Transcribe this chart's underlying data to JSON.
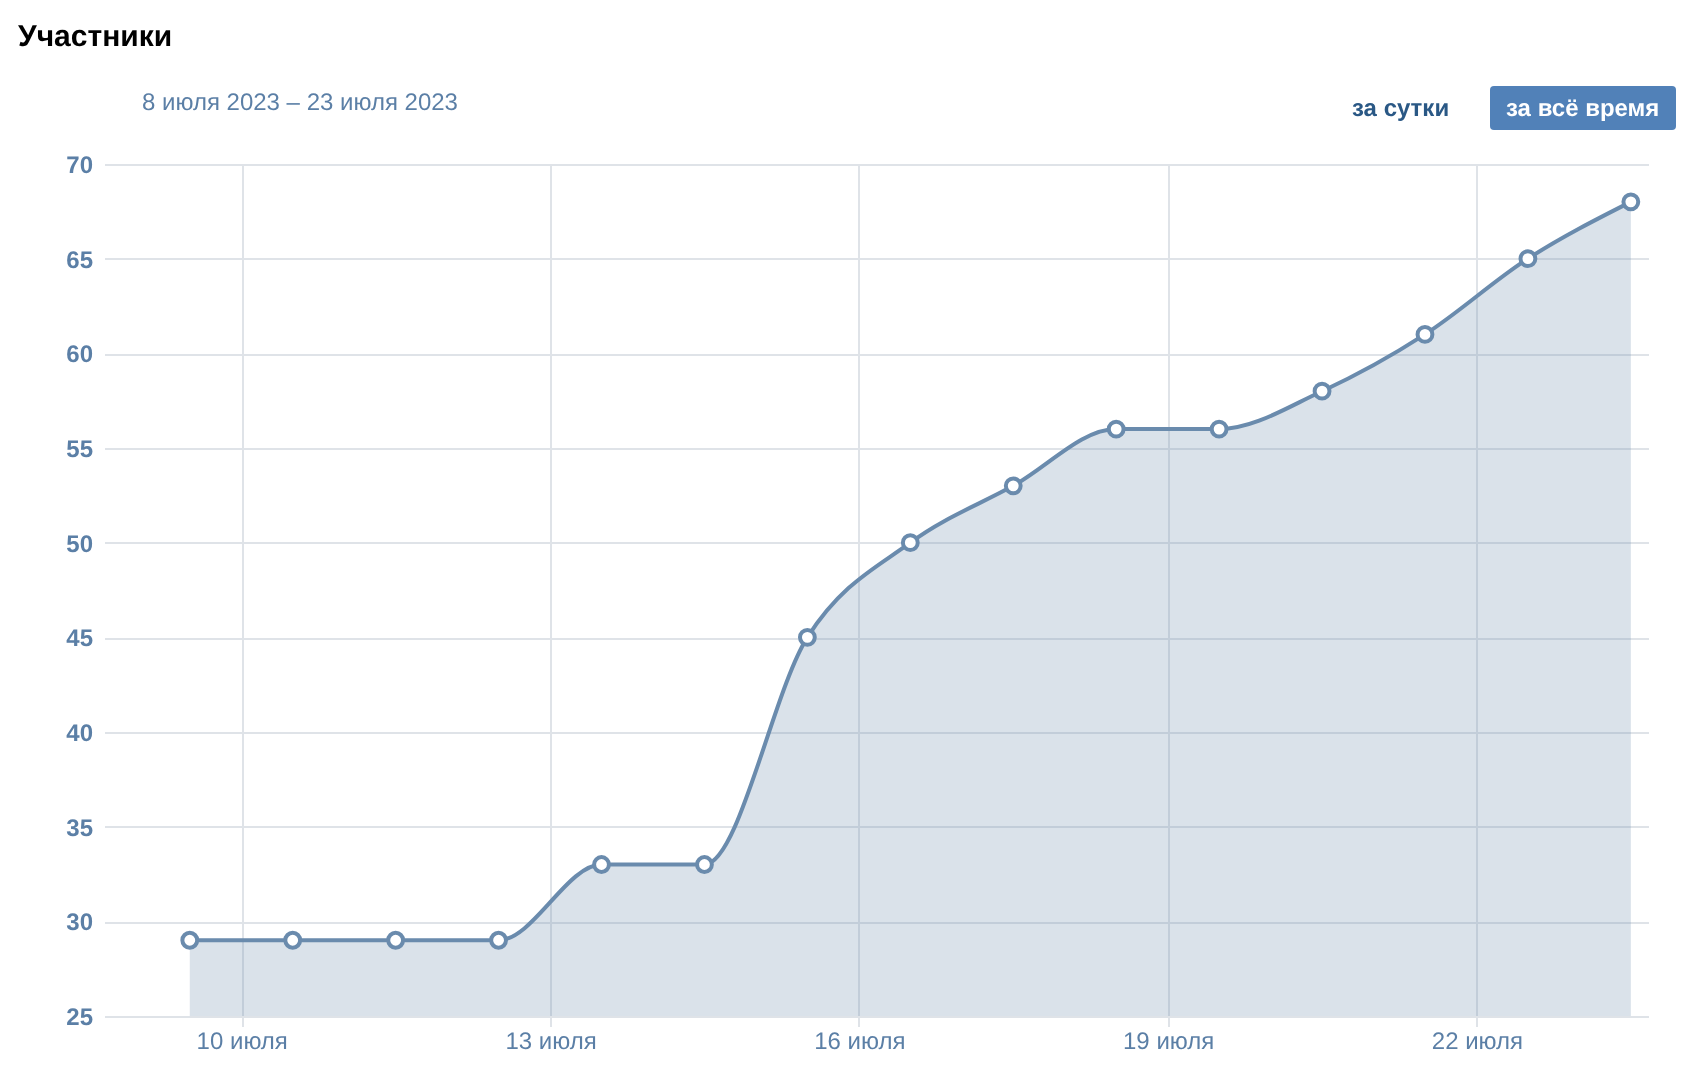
{
  "chart_data": {
    "type": "area",
    "title": "Участники",
    "subtitle": "8 июля 2023 – 23 июля 2023",
    "annotations": [
      "за сутки",
      "за всё время"
    ],
    "x": [
      "2023-07-09T12:00",
      "2023-07-10T12:00",
      "2023-07-11T12:00",
      "2023-07-12T12:00",
      "2023-07-13T12:00",
      "2023-07-14T12:00",
      "2023-07-15T12:00",
      "2023-07-16T12:00",
      "2023-07-17T12:00",
      "2023-07-18T12:00",
      "2023-07-19T12:00",
      "2023-07-20T12:00",
      "2023-07-21T12:00",
      "2023-07-22T12:00",
      "2023-07-23T12:00"
    ],
    "series": [
      {
        "color": "#6a8bad",
        "values": [
          29,
          29,
          29,
          29,
          33,
          33,
          45,
          50,
          53,
          56,
          56,
          58,
          61,
          65,
          68
        ]
      }
    ],
    "xlim": [
      "2023-07-08T16:00",
      "2023-07-23T16:00"
    ],
    "xticks": [
      {
        "value": "2023-07-10",
        "label": "10 июля"
      },
      {
        "value": "2023-07-13",
        "label": "13 июля"
      },
      {
        "value": "2023-07-16",
        "label": "16 июля"
      },
      {
        "value": "2023-07-19",
        "label": "19 июля"
      },
      {
        "value": "2023-07-22",
        "label": "22 июля"
      }
    ],
    "ylim": [
      25,
      70
    ],
    "yticks": [
      25,
      30,
      35,
      40,
      45,
      50,
      55,
      60,
      65,
      70
    ],
    "grid": true,
    "marker": "circle"
  }
}
